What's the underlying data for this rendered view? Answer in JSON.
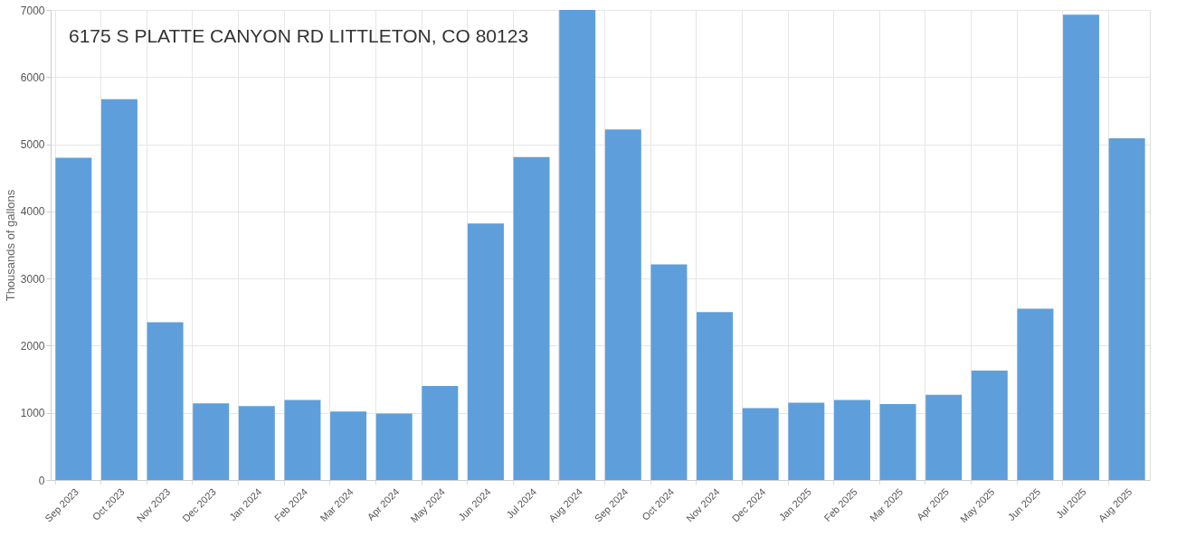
{
  "chart_data": {
    "type": "bar",
    "title": "6175 S PLATTE CANYON RD LITTLETON, CO 80123",
    "ylabel": "Thousands of gallons",
    "categories": [
      "Sep 2023",
      "Oct 2023",
      "Nov 2023",
      "Dec 2023",
      "Jan 2024",
      "Feb 2024",
      "Mar 2024",
      "Apr 2024",
      "May 2024",
      "Jun 2024",
      "Jul 2024",
      "Aug 2024",
      "Sep 2024",
      "Oct 2024",
      "Nov 2024",
      "Dec 2024",
      "Jan 2025",
      "Feb 2025",
      "Mar 2025",
      "Apr 2025",
      "May 2025",
      "Jun 2025",
      "Jul 2025",
      "Aug 2025"
    ],
    "values": [
      4800,
      5670,
      2350,
      1140,
      1100,
      1190,
      1020,
      990,
      1400,
      3820,
      4810,
      7000,
      5220,
      3210,
      2500,
      1070,
      1150,
      1190,
      1130,
      1270,
      1630,
      2550,
      6930,
      5090
    ],
    "color": "#5e9fdb",
    "ylim": [
      0,
      7000
    ],
    "yticks": [
      0,
      1000,
      2000,
      3000,
      4000,
      5000,
      6000,
      7000
    ],
    "grid": true
  }
}
